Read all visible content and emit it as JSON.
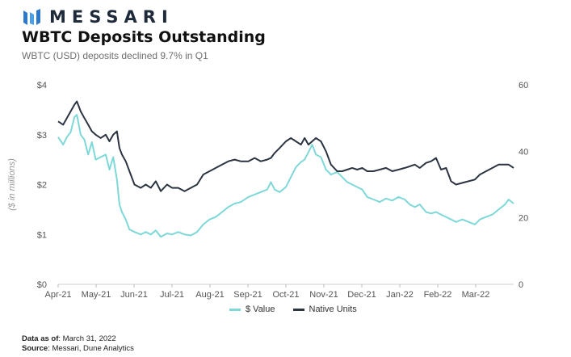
{
  "brand": {
    "name": "MESSARI",
    "logo_icon": "messari-logo-icon"
  },
  "header": {
    "title": "WBTC Deposits Outstanding",
    "subtitle": "WBTC (USD) deposits declined 9.7% in Q1"
  },
  "footer": {
    "data_as_of_label": "Data as of",
    "data_as_of_value": ": March 31, 2022",
    "source_label": "Source",
    "source_value": ": Messari, Dune Analytics"
  },
  "colors": {
    "value": "#7fd8d8",
    "native": "#2b3441",
    "axis": "#555555",
    "grid": "#e9e9e9"
  },
  "chart_data": {
    "type": "line",
    "title": "WBTC Deposits Outstanding",
    "subtitle": "WBTC (USD) deposits declined 9.7% in Q1",
    "ylabel": "($ in millions)",
    "y_left_ticks": [
      "$0",
      "$1",
      "$2",
      "$3",
      "$4"
    ],
    "y_left_range": [
      0,
      4
    ],
    "y_right_ticks": [
      "0",
      "20",
      "40",
      "60"
    ],
    "y_right_range": [
      0,
      60
    ],
    "x_tick_labels": [
      "Apr-21",
      "May-21",
      "Jun-21",
      "Jul-21",
      "Aug-21",
      "Sep-21",
      "Oct-21",
      "Nov-21",
      "Dec-21",
      "Jan-22",
      "Feb-22",
      "Mar-22"
    ],
    "x_range": [
      "2021-04-01",
      "2022-03-31"
    ],
    "legend_position": "bottom",
    "grid": false,
    "series": [
      {
        "name": "$ Value",
        "axis": "left",
        "points": [
          [
            "2021-04-01",
            2.95
          ],
          [
            "2021-04-05",
            2.8
          ],
          [
            "2021-04-08",
            2.95
          ],
          [
            "2021-04-11",
            3.05
          ],
          [
            "2021-04-14",
            3.35
          ],
          [
            "2021-04-16",
            3.4
          ],
          [
            "2021-04-19",
            3.0
          ],
          [
            "2021-04-22",
            2.9
          ],
          [
            "2021-04-25",
            2.6
          ],
          [
            "2021-04-28",
            2.85
          ],
          [
            "2021-05-01",
            2.5
          ],
          [
            "2021-05-05",
            2.55
          ],
          [
            "2021-05-09",
            2.6
          ],
          [
            "2021-05-12",
            2.3
          ],
          [
            "2021-05-15",
            2.55
          ],
          [
            "2021-05-18",
            2.1
          ],
          [
            "2021-05-20",
            1.6
          ],
          [
            "2021-05-22",
            1.45
          ],
          [
            "2021-05-25",
            1.3
          ],
          [
            "2021-05-28",
            1.1
          ],
          [
            "2021-06-01",
            1.05
          ],
          [
            "2021-06-06",
            1.0
          ],
          [
            "2021-06-10",
            1.05
          ],
          [
            "2021-06-14",
            1.0
          ],
          [
            "2021-06-18",
            1.08
          ],
          [
            "2021-06-22",
            0.95
          ],
          [
            "2021-06-27",
            1.02
          ],
          [
            "2021-07-01",
            1.0
          ],
          [
            "2021-07-06",
            1.05
          ],
          [
            "2021-07-11",
            1.0
          ],
          [
            "2021-07-16",
            0.98
          ],
          [
            "2021-07-21",
            1.05
          ],
          [
            "2021-07-26",
            1.2
          ],
          [
            "2021-07-31",
            1.3
          ],
          [
            "2021-08-05",
            1.35
          ],
          [
            "2021-08-10",
            1.45
          ],
          [
            "2021-08-15",
            1.55
          ],
          [
            "2021-08-20",
            1.62
          ],
          [
            "2021-08-25",
            1.65
          ],
          [
            "2021-08-31",
            1.75
          ],
          [
            "2021-09-05",
            1.8
          ],
          [
            "2021-09-10",
            1.85
          ],
          [
            "2021-09-15",
            1.9
          ],
          [
            "2021-09-18",
            2.05
          ],
          [
            "2021-09-21",
            1.9
          ],
          [
            "2021-09-25",
            1.85
          ],
          [
            "2021-09-30",
            1.95
          ],
          [
            "2021-10-04",
            2.15
          ],
          [
            "2021-10-08",
            2.35
          ],
          [
            "2021-10-12",
            2.45
          ],
          [
            "2021-10-15",
            2.5
          ],
          [
            "2021-10-18",
            2.65
          ],
          [
            "2021-10-21",
            2.8
          ],
          [
            "2021-10-24",
            2.6
          ],
          [
            "2021-10-28",
            2.55
          ],
          [
            "2021-11-01",
            2.3
          ],
          [
            "2021-11-05",
            2.2
          ],
          [
            "2021-11-10",
            2.25
          ],
          [
            "2021-11-14",
            2.15
          ],
          [
            "2021-11-18",
            2.05
          ],
          [
            "2021-11-22",
            2.0
          ],
          [
            "2021-11-26",
            1.95
          ],
          [
            "2021-11-30",
            1.9
          ],
          [
            "2021-12-04",
            1.75
          ],
          [
            "2021-12-09",
            1.7
          ],
          [
            "2021-12-14",
            1.65
          ],
          [
            "2021-12-19",
            1.72
          ],
          [
            "2021-12-24",
            1.68
          ],
          [
            "2021-12-29",
            1.75
          ],
          [
            "2022-01-03",
            1.7
          ],
          [
            "2022-01-07",
            1.6
          ],
          [
            "2022-01-11",
            1.55
          ],
          [
            "2022-01-15",
            1.6
          ],
          [
            "2022-01-20",
            1.45
          ],
          [
            "2022-01-24",
            1.42
          ],
          [
            "2022-01-28",
            1.45
          ],
          [
            "2022-02-01",
            1.4
          ],
          [
            "2022-02-05",
            1.35
          ],
          [
            "2022-02-09",
            1.3
          ],
          [
            "2022-02-13",
            1.25
          ],
          [
            "2022-02-18",
            1.3
          ],
          [
            "2022-02-23",
            1.25
          ],
          [
            "2022-02-28",
            1.2
          ],
          [
            "2022-03-04",
            1.3
          ],
          [
            "2022-03-09",
            1.35
          ],
          [
            "2022-03-14",
            1.4
          ],
          [
            "2022-03-19",
            1.5
          ],
          [
            "2022-03-24",
            1.6
          ],
          [
            "2022-03-27",
            1.7
          ],
          [
            "2022-03-31",
            1.62
          ]
        ]
      },
      {
        "name": "Native Units",
        "axis": "right",
        "points": [
          [
            "2021-04-01",
            49
          ],
          [
            "2021-04-05",
            48
          ],
          [
            "2021-04-08",
            50
          ],
          [
            "2021-04-11",
            52
          ],
          [
            "2021-04-14",
            54
          ],
          [
            "2021-04-16",
            55
          ],
          [
            "2021-04-19",
            52
          ],
          [
            "2021-04-22",
            50
          ],
          [
            "2021-04-25",
            48
          ],
          [
            "2021-04-28",
            46
          ],
          [
            "2021-05-01",
            45
          ],
          [
            "2021-05-05",
            44
          ],
          [
            "2021-05-09",
            45
          ],
          [
            "2021-05-12",
            43
          ],
          [
            "2021-05-15",
            45
          ],
          [
            "2021-05-18",
            46
          ],
          [
            "2021-05-20",
            41
          ],
          [
            "2021-05-22",
            39
          ],
          [
            "2021-05-25",
            37
          ],
          [
            "2021-05-28",
            34
          ],
          [
            "2021-06-01",
            30
          ],
          [
            "2021-06-06",
            29
          ],
          [
            "2021-06-10",
            30
          ],
          [
            "2021-06-14",
            29
          ],
          [
            "2021-06-18",
            31
          ],
          [
            "2021-06-22",
            28
          ],
          [
            "2021-06-27",
            30
          ],
          [
            "2021-07-01",
            29
          ],
          [
            "2021-07-06",
            29
          ],
          [
            "2021-07-11",
            28
          ],
          [
            "2021-07-16",
            29
          ],
          [
            "2021-07-21",
            30
          ],
          [
            "2021-07-26",
            33
          ],
          [
            "2021-07-31",
            34
          ],
          [
            "2021-08-05",
            35
          ],
          [
            "2021-08-10",
            36
          ],
          [
            "2021-08-15",
            37
          ],
          [
            "2021-08-20",
            37.5
          ],
          [
            "2021-08-25",
            37
          ],
          [
            "2021-08-31",
            37
          ],
          [
            "2021-09-05",
            38
          ],
          [
            "2021-09-10",
            37
          ],
          [
            "2021-09-15",
            37.5
          ],
          [
            "2021-09-18",
            38
          ],
          [
            "2021-09-21",
            39.5
          ],
          [
            "2021-09-25",
            41
          ],
          [
            "2021-09-30",
            43
          ],
          [
            "2021-10-04",
            44
          ],
          [
            "2021-10-08",
            43
          ],
          [
            "2021-10-12",
            42
          ],
          [
            "2021-10-15",
            44
          ],
          [
            "2021-10-18",
            42
          ],
          [
            "2021-10-21",
            43
          ],
          [
            "2021-10-24",
            44
          ],
          [
            "2021-10-28",
            43
          ],
          [
            "2021-11-01",
            40
          ],
          [
            "2021-11-05",
            36
          ],
          [
            "2021-11-10",
            34
          ],
          [
            "2021-11-14",
            34
          ],
          [
            "2021-11-18",
            34.5
          ],
          [
            "2021-11-22",
            35
          ],
          [
            "2021-11-26",
            34.5
          ],
          [
            "2021-11-30",
            35
          ],
          [
            "2021-12-04",
            34
          ],
          [
            "2021-12-09",
            34
          ],
          [
            "2021-12-14",
            34.5
          ],
          [
            "2021-12-19",
            35
          ],
          [
            "2021-12-24",
            34
          ],
          [
            "2021-12-29",
            34.5
          ],
          [
            "2022-01-03",
            35
          ],
          [
            "2022-01-07",
            35.5
          ],
          [
            "2022-01-11",
            36
          ],
          [
            "2022-01-15",
            35
          ],
          [
            "2022-01-20",
            36.5
          ],
          [
            "2022-01-24",
            37
          ],
          [
            "2022-01-28",
            38
          ],
          [
            "2022-02-01",
            34.5
          ],
          [
            "2022-02-05",
            35
          ],
          [
            "2022-02-09",
            31
          ],
          [
            "2022-02-13",
            30
          ],
          [
            "2022-02-18",
            30.5
          ],
          [
            "2022-02-23",
            31
          ],
          [
            "2022-02-28",
            31.5
          ],
          [
            "2022-03-04",
            33
          ],
          [
            "2022-03-09",
            34
          ],
          [
            "2022-03-14",
            35
          ],
          [
            "2022-03-19",
            36
          ],
          [
            "2022-03-24",
            36
          ],
          [
            "2022-03-27",
            36
          ],
          [
            "2022-03-31",
            35
          ]
        ]
      }
    ]
  }
}
